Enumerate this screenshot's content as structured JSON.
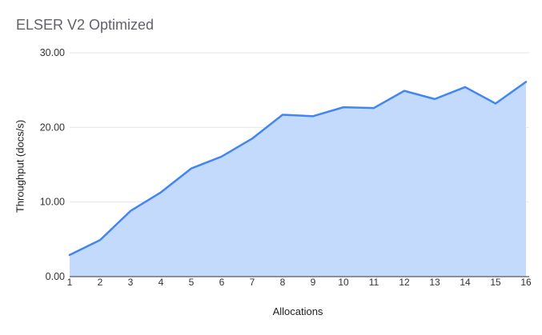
{
  "chart_data": {
    "type": "area",
    "title": "ELSER V2 Optimized",
    "xlabel": "Allocations",
    "ylabel": "Throughput (docs/s)",
    "categories": [
      1,
      2,
      3,
      4,
      5,
      6,
      7,
      8,
      9,
      10,
      11,
      12,
      13,
      14,
      15,
      16
    ],
    "series": [
      {
        "name": "ELSER V2 Optimized",
        "values": [
          2.9,
          4.9,
          8.8,
          11.3,
          14.5,
          16.1,
          18.5,
          21.7,
          21.5,
          22.7,
          22.6,
          24.9,
          23.8,
          25.4,
          23.2,
          26.1
        ]
      }
    ],
    "ylim": [
      0,
      30
    ],
    "ytick_step": 10,
    "ytick_labels": [
      "0.00",
      "10.00",
      "20.00",
      "30.00"
    ],
    "grid": true,
    "legend_position": "none",
    "colors": {
      "line": "#4285f4",
      "fill": "#c3dafc",
      "gridline": "#e6e6e6",
      "axis_line": "#333333",
      "tick_text": "#333333",
      "axis_title_text": "#202124",
      "title_text": "#5f6368"
    }
  }
}
